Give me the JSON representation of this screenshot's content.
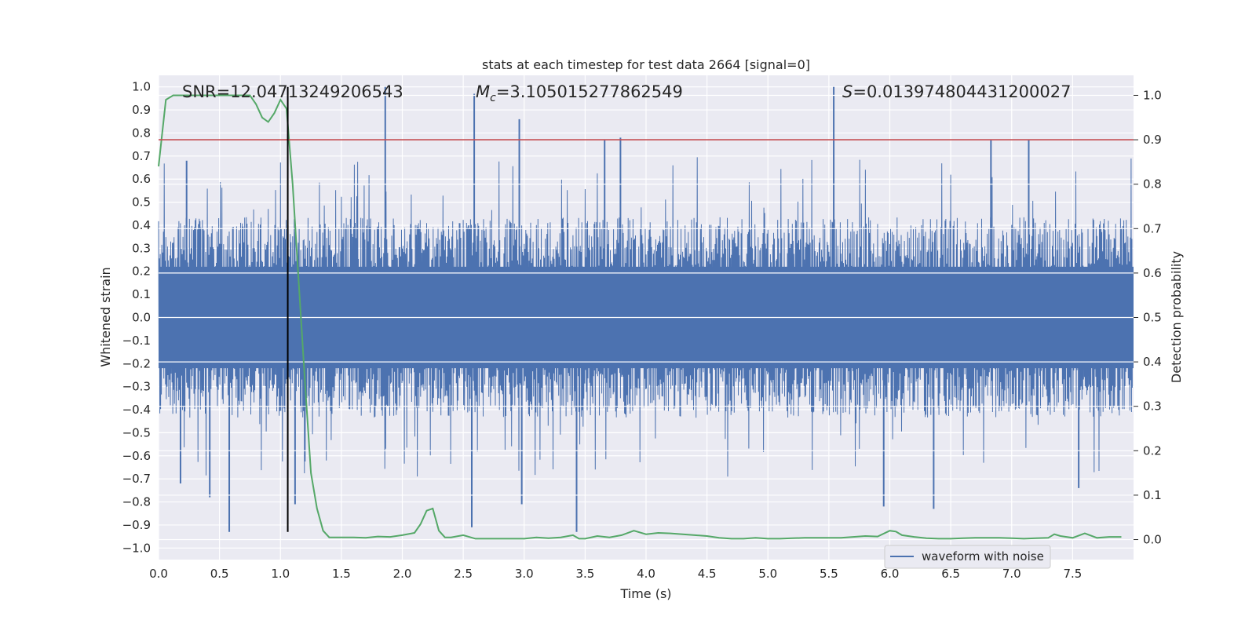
{
  "chart_data": {
    "type": "line",
    "title": "stats at each timestep for test data 2664 [signal=0]",
    "xlabel": "Time (s)",
    "ylabel": "Whitened strain",
    "y2label": "Detection probability",
    "xlim": [
      0.0,
      8.0
    ],
    "ylim": [
      -1.05,
      1.05
    ],
    "y2lim": [
      -0.045,
      1.045
    ],
    "xticks": [
      "0.0",
      "0.5",
      "1.0",
      "1.5",
      "2.0",
      "2.5",
      "3.0",
      "3.5",
      "4.0",
      "4.5",
      "5.0",
      "5.5",
      "6.0",
      "6.5",
      "7.0",
      "7.5"
    ],
    "xtick_values": [
      0.0,
      0.5,
      1.0,
      1.5,
      2.0,
      2.5,
      3.0,
      3.5,
      4.0,
      4.5,
      5.0,
      5.5,
      6.0,
      6.5,
      7.0,
      7.5
    ],
    "yticks": [
      "1.0",
      "0.9",
      "0.8",
      "0.7",
      "0.6",
      "0.5",
      "0.4",
      "0.3",
      "0.2",
      "0.1",
      "0.0",
      "−0.1",
      "−0.2",
      "−0.3",
      "−0.4",
      "−0.5",
      "−0.6",
      "−0.7",
      "−0.8",
      "−0.9",
      "−1.0"
    ],
    "ytick_values": [
      1.0,
      0.9,
      0.8,
      0.7,
      0.6,
      0.5,
      0.4,
      0.3,
      0.2,
      0.1,
      0.0,
      -0.1,
      -0.2,
      -0.3,
      -0.4,
      -0.5,
      -0.6,
      -0.7,
      -0.8,
      -0.9,
      -1.0
    ],
    "y2ticks": [
      "1.0",
      "0.9",
      "0.8",
      "0.7",
      "0.6",
      "0.5",
      "0.4",
      "0.3",
      "0.2",
      "0.1",
      "0.0"
    ],
    "y2tick_values": [
      1.0,
      0.9,
      0.8,
      0.7,
      0.6,
      0.5,
      0.4,
      0.3,
      0.2,
      0.1,
      0.0
    ],
    "annotations": {
      "snr": "SNR=12.04713249206543",
      "mc_symbol": "M",
      "mc_sub": "c",
      "mc_value": "=3.105015277862549",
      "s_symbol": "S",
      "s_value": "=0.013974804431200027"
    },
    "legend": {
      "position": "lower-right",
      "label": "waveform with noise"
    },
    "threshold": {
      "axis": "right",
      "value": 0.9,
      "color": "#c44e52"
    },
    "marker_line": {
      "x": 1.06,
      "y_from": -0.93,
      "y_to": 1.0,
      "color": "#000000"
    },
    "waveform": {
      "name": "waveform with noise",
      "color": "#4c72b0",
      "typical_envelope": 0.3,
      "spikes": [
        {
          "x": 0.18,
          "y": -0.72
        },
        {
          "x": 0.23,
          "y": 0.68
        },
        {
          "x": 0.42,
          "y": -0.78
        },
        {
          "x": 0.58,
          "y": -0.93
        },
        {
          "x": 1.06,
          "y": 0.4
        },
        {
          "x": 1.12,
          "y": -0.81
        },
        {
          "x": 1.86,
          "y": 1.0
        },
        {
          "x": 2.57,
          "y": -0.91
        },
        {
          "x": 2.59,
          "y": 0.97
        },
        {
          "x": 2.96,
          "y": 0.86
        },
        {
          "x": 2.98,
          "y": -0.81
        },
        {
          "x": 3.43,
          "y": -0.93
        },
        {
          "x": 3.66,
          "y": 0.77
        },
        {
          "x": 3.79,
          "y": 0.78
        },
        {
          "x": 5.54,
          "y": 1.0
        },
        {
          "x": 5.95,
          "y": -0.82
        },
        {
          "x": 6.36,
          "y": -0.83
        },
        {
          "x": 6.83,
          "y": 0.77
        },
        {
          "x": 7.14,
          "y": 0.77
        },
        {
          "x": 7.55,
          "y": -0.74
        }
      ]
    },
    "probability": {
      "name": "detection probability",
      "color": "#55a868",
      "x": [
        0.0,
        0.06,
        0.12,
        0.2,
        0.4,
        0.6,
        0.75,
        0.8,
        0.85,
        0.9,
        0.95,
        1.0,
        1.05,
        1.1,
        1.15,
        1.2,
        1.25,
        1.3,
        1.35,
        1.4,
        1.5,
        1.6,
        1.7,
        1.8,
        1.9,
        2.0,
        2.1,
        2.15,
        2.2,
        2.25,
        2.3,
        2.35,
        2.4,
        2.5,
        2.6,
        2.8,
        3.0,
        3.1,
        3.2,
        3.3,
        3.4,
        3.45,
        3.5,
        3.6,
        3.7,
        3.8,
        3.9,
        4.0,
        4.1,
        4.2,
        4.3,
        4.4,
        4.5,
        4.6,
        4.7,
        4.8,
        4.9,
        5.0,
        5.1,
        5.2,
        5.3,
        5.4,
        5.5,
        5.6,
        5.7,
        5.8,
        5.9,
        6.0,
        6.05,
        6.1,
        6.2,
        6.3,
        6.4,
        6.5,
        6.6,
        6.7,
        6.8,
        6.9,
        7.0,
        7.1,
        7.2,
        7.3,
        7.35,
        7.4,
        7.5,
        7.6,
        7.7,
        7.8,
        7.9
      ],
      "y": [
        0.84,
        0.99,
        1.0,
        1.0,
        1.0,
        1.0,
        1.0,
        0.98,
        0.95,
        0.94,
        0.96,
        0.99,
        0.97,
        0.8,
        0.58,
        0.36,
        0.15,
        0.07,
        0.02,
        0.005,
        0.005,
        0.005,
        0.004,
        0.007,
        0.006,
        0.01,
        0.015,
        0.035,
        0.065,
        0.07,
        0.02,
        0.005,
        0.005,
        0.01,
        0.002,
        0.002,
        0.002,
        0.005,
        0.003,
        0.005,
        0.01,
        0.002,
        0.002,
        0.008,
        0.005,
        0.01,
        0.02,
        0.012,
        0.015,
        0.014,
        0.012,
        0.01,
        0.008,
        0.004,
        0.002,
        0.002,
        0.004,
        0.002,
        0.002,
        0.003,
        0.004,
        0.004,
        0.004,
        0.004,
        0.006,
        0.008,
        0.007,
        0.02,
        0.018,
        0.01,
        0.006,
        0.003,
        0.002,
        0.002,
        0.003,
        0.004,
        0.004,
        0.004,
        0.003,
        0.002,
        0.003,
        0.004,
        0.012,
        0.008,
        0.004,
        0.014,
        0.004,
        0.006,
        0.006
      ]
    }
  }
}
